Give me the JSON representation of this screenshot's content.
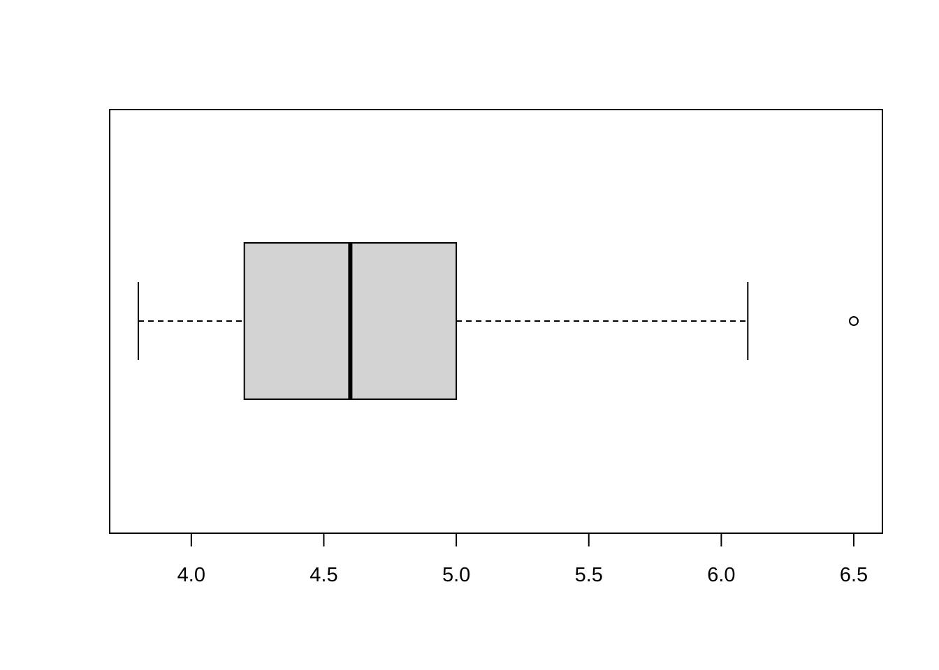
{
  "chart_data": {
    "type": "boxplot",
    "orientation": "horizontal",
    "title": "",
    "xlabel": "",
    "ylabel": "",
    "xlim": [
      3.692,
      6.608
    ],
    "x_ticks": [
      4.0,
      4.5,
      5.0,
      5.5,
      6.0,
      6.5
    ],
    "x_tick_labels": [
      "4.0",
      "4.5",
      "5.0",
      "5.5",
      "6.0",
      "6.5"
    ],
    "grid": false,
    "boxes": [
      {
        "whisker_low": 3.8,
        "q1": 4.2,
        "median": 4.6,
        "q3": 5.0,
        "whisker_high": 6.1,
        "outliers": [
          6.5
        ]
      }
    ],
    "colors": {
      "box_fill": "#d3d3d3",
      "line": "#000000"
    }
  }
}
